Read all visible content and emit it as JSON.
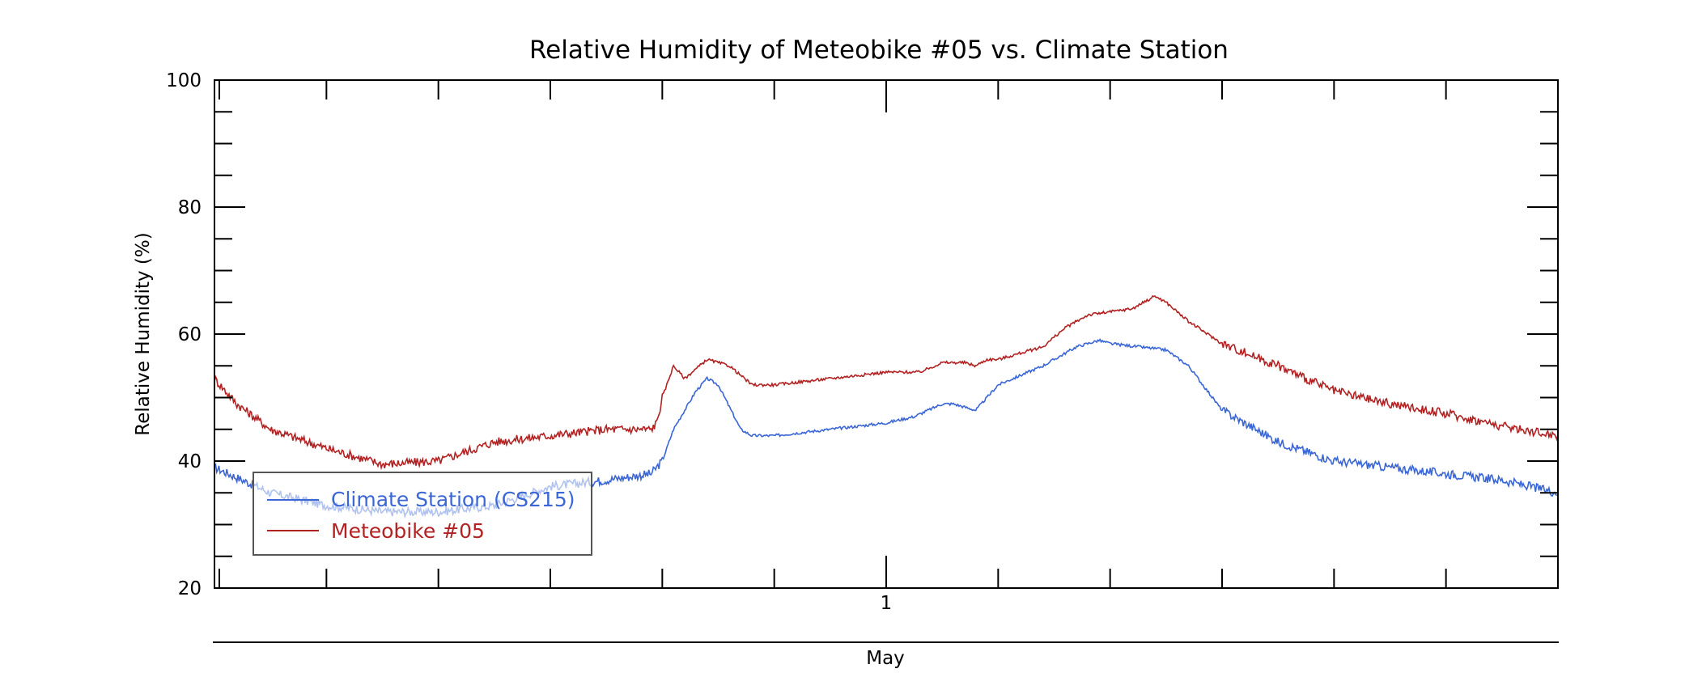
{
  "chart_data": {
    "type": "line",
    "title": "Relative Humidity of Meteobike #05 vs. Climate Station",
    "ylabel": "Relative Humidity (%)",
    "xlabel": "May",
    "ylim": [
      20,
      100
    ],
    "yticks": [
      20,
      40,
      60,
      80,
      100
    ],
    "yticks_minor_step": 5,
    "xlim_days": [
      -6,
      6
    ],
    "xtick_labels": [
      {
        "day": 0,
        "label": "1"
      }
    ],
    "grid": false,
    "legend": "lower-left",
    "series": [
      {
        "name": "Climate Station (CS215)",
        "color": "#3a66d6",
        "x_days": [
          -6.0,
          -5.5,
          -5.0,
          -4.5,
          -4.0,
          -3.5,
          -3.0,
          -2.5,
          -2.1,
          -2.0,
          -1.9,
          -1.8,
          -1.7,
          -1.6,
          -1.5,
          -1.3,
          -1.2,
          -1.0,
          -0.5,
          0.0,
          0.25,
          0.5,
          0.6,
          0.8,
          0.9,
          1.0,
          1.4,
          1.7,
          1.9,
          2.0,
          2.5,
          2.7,
          3.0,
          3.5,
          4.0,
          4.5,
          5.0,
          5.5,
          6.0
        ],
        "y": [
          39,
          35,
          33,
          32,
          32,
          33,
          36,
          37,
          38,
          40,
          45,
          48,
          51,
          53,
          52,
          45,
          44,
          44,
          45,
          46,
          47,
          49,
          49,
          48,
          50,
          52,
          55,
          58,
          59,
          58.5,
          57.5,
          55,
          48,
          43,
          40,
          39,
          38,
          37,
          35
        ]
      },
      {
        "name": "Meteobike #05",
        "color": "#b22222",
        "x_days": [
          -6.0,
          -5.8,
          -5.5,
          -5.0,
          -4.5,
          -4.0,
          -3.5,
          -3.0,
          -2.5,
          -2.1,
          -2.05,
          -2.0,
          -1.9,
          -1.8,
          -1.6,
          -1.4,
          -1.2,
          -1.0,
          -0.5,
          0.0,
          0.3,
          0.5,
          0.7,
          0.8,
          0.9,
          1.0,
          1.4,
          1.6,
          1.8,
          2.0,
          2.2,
          2.4,
          2.5,
          2.7,
          3.0,
          3.5,
          4.0,
          4.5,
          5.0,
          5.5,
          6.0
        ],
        "y": [
          53,
          49,
          45,
          42,
          39.5,
          40,
          43,
          44,
          45,
          45,
          46,
          50,
          55,
          53,
          56,
          55,
          52,
          52,
          53,
          54,
          54,
          55.5,
          55.5,
          55,
          56,
          56,
          58,
          61,
          63,
          63.5,
          64,
          66,
          65,
          62,
          58.5,
          55,
          51,
          49,
          47.5,
          45.5,
          44
        ]
      }
    ]
  }
}
